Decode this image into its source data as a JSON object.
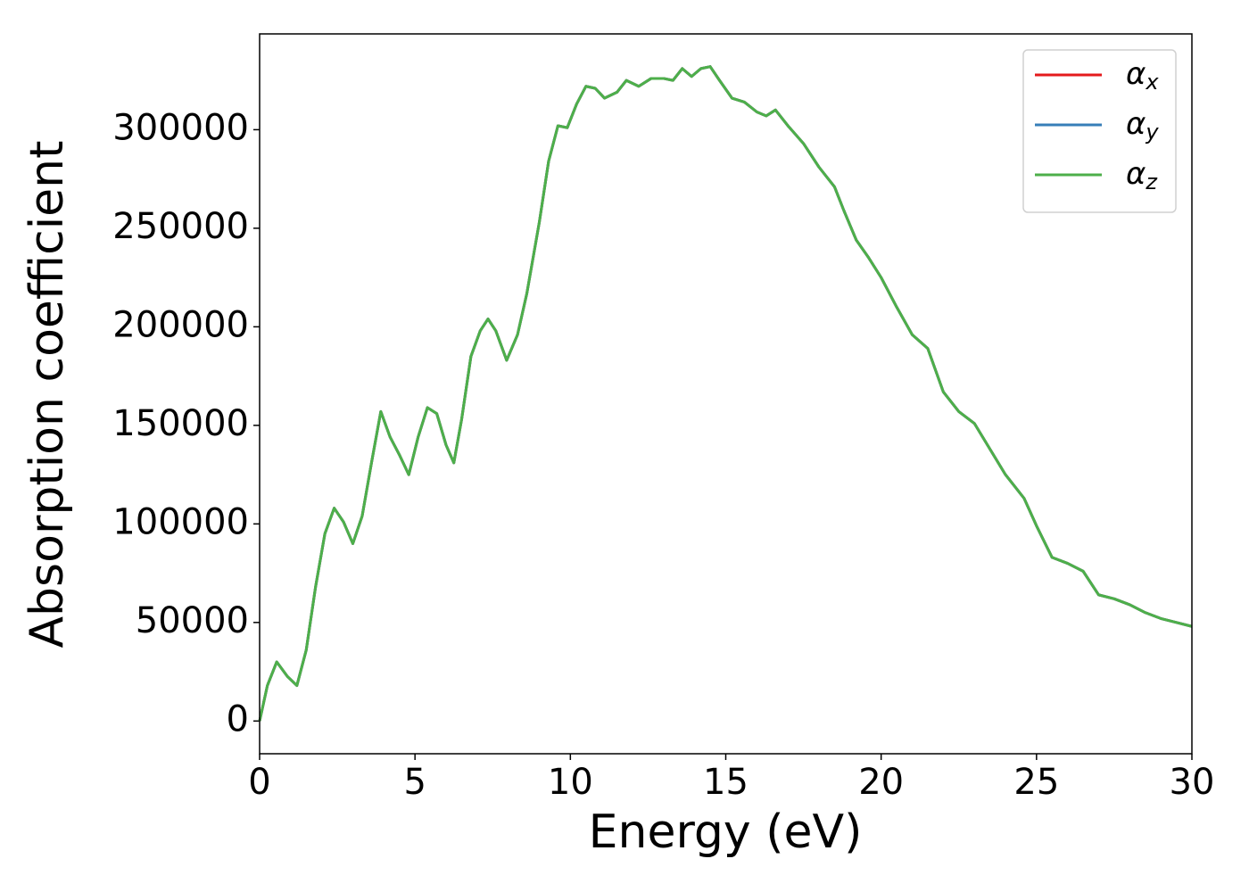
{
  "chart_data": {
    "type": "line",
    "xlabel": "Energy (eV)",
    "ylabel": "Absorption coefficient",
    "x": [
      0,
      0.25,
      0.55,
      0.9,
      1.2,
      1.5,
      1.8,
      2.1,
      2.4,
      2.7,
      3.0,
      3.3,
      3.6,
      3.9,
      4.2,
      4.5,
      4.8,
      5.1,
      5.4,
      5.7,
      6.0,
      6.25,
      6.5,
      6.8,
      7.1,
      7.35,
      7.6,
      7.95,
      8.3,
      8.6,
      9.0,
      9.3,
      9.6,
      9.9,
      10.2,
      10.5,
      10.8,
      11.1,
      11.5,
      11.8,
      12.2,
      12.6,
      13.0,
      13.3,
      13.6,
      13.9,
      14.2,
      14.5,
      14.8,
      15.2,
      15.6,
      16.0,
      16.3,
      16.6,
      17.0,
      17.5,
      18.0,
      18.5,
      18.8,
      19.2,
      19.6,
      20.0,
      20.5,
      21.0,
      21.5,
      22.0,
      22.5,
      23.0,
      23.5,
      24.0,
      24.6,
      25.0,
      25.5,
      26.0,
      26.5,
      27.0,
      27.5,
      28.0,
      28.5,
      29.0,
      29.5,
      30
    ],
    "series": [
      {
        "name": "αx",
        "color": "#e41a1c",
        "values": [
          0,
          18000,
          30000,
          22500,
          18000,
          36000,
          68000,
          95000,
          108000,
          101000,
          90000,
          104000,
          131000,
          157000,
          144000,
          135000,
          125000,
          144000,
          159000,
          156000,
          140000,
          131000,
          153000,
          185000,
          198000,
          204000,
          198000,
          183000,
          196000,
          217000,
          253000,
          284000,
          302000,
          301000,
          313000,
          322000,
          321000,
          316000,
          319000,
          325000,
          322000,
          326000,
          326000,
          325000,
          331000,
          327000,
          331000,
          332000,
          325000,
          316000,
          314000,
          309000,
          307000,
          310000,
          302000,
          293000,
          281000,
          271000,
          259000,
          244000,
          235000,
          225000,
          210000,
          196000,
          189000,
          167000,
          157000,
          151000,
          138000,
          125000,
          113000,
          99000,
          83000,
          80000,
          76000,
          64000,
          62000,
          59000,
          55000,
          52000,
          50000,
          48000
        ]
      },
      {
        "name": "αy",
        "color": "#377eb8",
        "values": [
          0,
          18000,
          30000,
          22500,
          18000,
          36000,
          68000,
          95000,
          108000,
          101000,
          90000,
          104000,
          131000,
          157000,
          144000,
          135000,
          125000,
          144000,
          159000,
          156000,
          140000,
          131000,
          153000,
          185000,
          198000,
          204000,
          198000,
          183000,
          196000,
          217000,
          253000,
          284000,
          302000,
          301000,
          313000,
          322000,
          321000,
          316000,
          319000,
          325000,
          322000,
          326000,
          326000,
          325000,
          331000,
          327000,
          331000,
          332000,
          325000,
          316000,
          314000,
          309000,
          307000,
          310000,
          302000,
          293000,
          281000,
          271000,
          259000,
          244000,
          235000,
          225000,
          210000,
          196000,
          189000,
          167000,
          157000,
          151000,
          138000,
          125000,
          113000,
          99000,
          83000,
          80000,
          76000,
          64000,
          62000,
          59000,
          55000,
          52000,
          50000,
          48000
        ]
      },
      {
        "name": "αz",
        "color": "#4daf4a",
        "values": [
          0,
          18000,
          30000,
          22500,
          18000,
          36000,
          68000,
          95000,
          108000,
          101000,
          90000,
          104000,
          131000,
          157000,
          144000,
          135000,
          125000,
          144000,
          159000,
          156000,
          140000,
          131000,
          153000,
          185000,
          198000,
          204000,
          198000,
          183000,
          196000,
          217000,
          253000,
          284000,
          302000,
          301000,
          313000,
          322000,
          321000,
          316000,
          319000,
          325000,
          322000,
          326000,
          326000,
          325000,
          331000,
          327000,
          331000,
          332000,
          325000,
          316000,
          314000,
          309000,
          307000,
          310000,
          302000,
          293000,
          281000,
          271000,
          259000,
          244000,
          235000,
          225000,
          210000,
          196000,
          189000,
          167000,
          157000,
          151000,
          138000,
          125000,
          113000,
          99000,
          83000,
          80000,
          76000,
          64000,
          62000,
          59000,
          55000,
          52000,
          50000,
          48000
        ]
      }
    ],
    "xlim": [
      0,
      30
    ],
    "xticks": [
      0,
      5,
      10,
      15,
      20,
      25,
      30
    ],
    "ylim": [
      -16600,
      348600
    ],
    "yticks": [
      0,
      50000,
      100000,
      150000,
      200000,
      250000,
      300000
    ],
    "legend": "upper right",
    "grid": false
  }
}
